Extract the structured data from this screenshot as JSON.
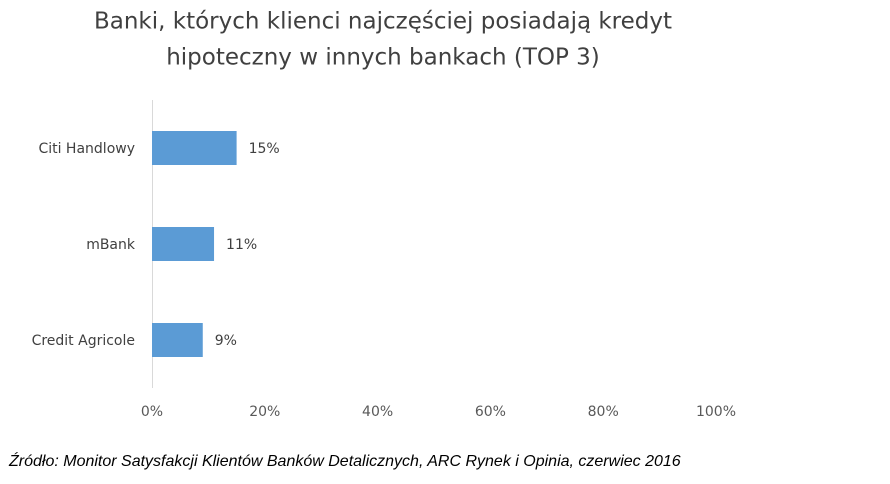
{
  "chart_data": {
    "type": "hbar",
    "title": [
      "Banki, których klienci najczęściej posiadają kredyt",
      "hipoteczny w innych bankach (TOP 3)"
    ],
    "categories": [
      "Citi Handlowy",
      "mBank",
      "Credit Agricole"
    ],
    "values": [
      15,
      11,
      9
    ],
    "value_labels": [
      "15%",
      "11%",
      "9%"
    ],
    "color": "#5b9bd5",
    "xlim": [
      0,
      100
    ],
    "xticks": [
      {
        "value": 0,
        "label": "0%"
      },
      {
        "value": 20,
        "label": "20%"
      },
      {
        "value": 40,
        "label": "40%"
      },
      {
        "value": 60,
        "label": "60%"
      },
      {
        "value": 80,
        "label": "80%"
      },
      {
        "value": 100,
        "label": "100%"
      }
    ],
    "grid": false,
    "source": "Źródło: Monitor Satysfakcji Klientów Banków Detalicznych, ARC Rynek i Opinia, czerwiec 2016"
  }
}
